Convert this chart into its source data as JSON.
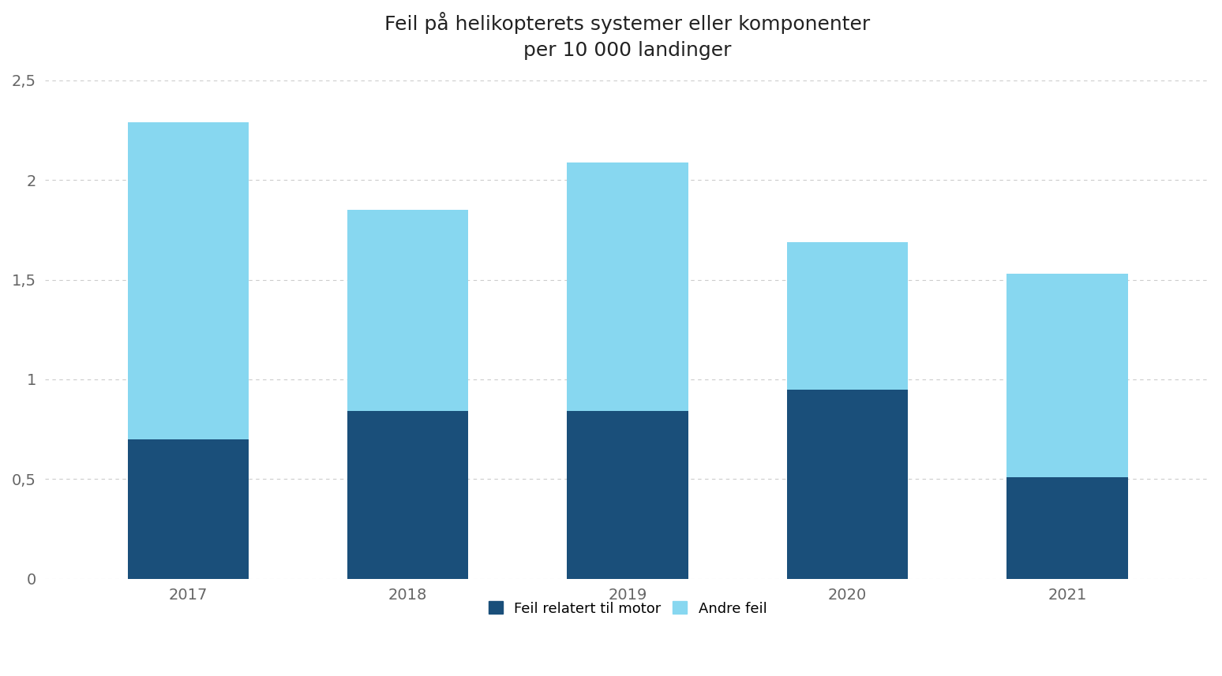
{
  "title": "Feil på helikopterets systemer eller komponenter\nper 10 000 landinger",
  "categories": [
    "2017",
    "2018",
    "2019",
    "2020",
    "2021"
  ],
  "motor_feil": [
    0.7,
    0.84,
    0.84,
    0.95,
    0.51
  ],
  "andre_feil": [
    1.59,
    1.01,
    1.25,
    0.74,
    1.02
  ],
  "color_motor": "#1a4f7a",
  "color_andre": "#87d7f0",
  "ylim": [
    0,
    2.5
  ],
  "yticks": [
    0,
    0.5,
    1.0,
    1.5,
    2.0,
    2.5
  ],
  "ytick_labels": [
    "0",
    "0,5",
    "1",
    "1,5",
    "2",
    "2,5"
  ],
  "legend_motor": "Feil relatert til motor",
  "legend_andre": "Andre feil",
  "background_color": "#ffffff",
  "grid_color": "#cccccc",
  "title_fontsize": 18,
  "tick_fontsize": 14,
  "legend_fontsize": 13,
  "bar_width": 0.55
}
